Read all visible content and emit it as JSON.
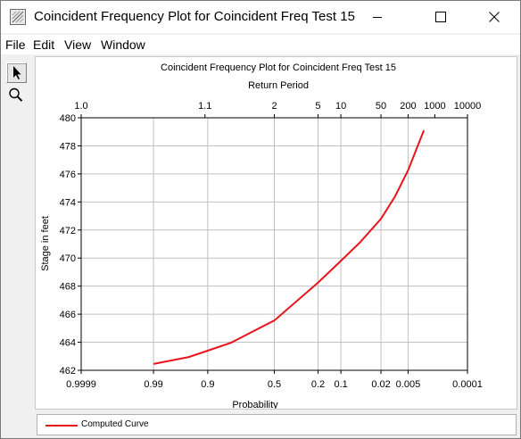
{
  "window": {
    "title": "Coincident Frequency Plot for Coincident Freq Test 15"
  },
  "menubar": {
    "items": [
      "File",
      "Edit",
      "View",
      "Window"
    ]
  },
  "toolbar": {
    "tools": [
      {
        "icon": "pointer-arrow-icon",
        "active": true
      },
      {
        "icon": "zoom-magnifier-icon",
        "active": false
      }
    ]
  },
  "colors": {
    "curve": "#e8141c",
    "grid": "#c0c0c0",
    "axis": "#000000"
  },
  "chart_data": {
    "type": "line",
    "title": "Coincident Frequency Plot for Coincident Freq Test 15",
    "top_axis_label": "Return Period",
    "top_ticks": [
      "1.0",
      "1.1",
      "2",
      "5",
      "10",
      "50",
      "200",
      "1000",
      "10000"
    ],
    "xlabel": "Probability",
    "x_scale": "normal-probability (exceedance)",
    "x_ticks": [
      "0.9999",
      "0.99",
      "0.9",
      "0.5",
      "0.2",
      "0.1",
      "0.02",
      "0.005",
      "0.0001"
    ],
    "xlim": [
      0.9999,
      0.0001
    ],
    "ylabel": "Stage in feet",
    "ylim": [
      462,
      480
    ],
    "y_ticks": [
      462,
      464,
      466,
      468,
      470,
      472,
      474,
      476,
      478,
      480
    ],
    "grid": true,
    "legend_position": "bottom",
    "series": [
      {
        "name": "Computed Curve",
        "color": "#e8141c",
        "x": [
          0.99,
          0.95,
          0.9,
          0.8,
          0.5,
          0.2,
          0.1,
          0.05,
          0.02,
          0.01,
          0.005,
          0.002
        ],
        "y": [
          462.45,
          462.95,
          463.4,
          463.95,
          465.55,
          468.25,
          469.8,
          471.1,
          472.8,
          474.4,
          476.25,
          479.1
        ]
      }
    ]
  }
}
